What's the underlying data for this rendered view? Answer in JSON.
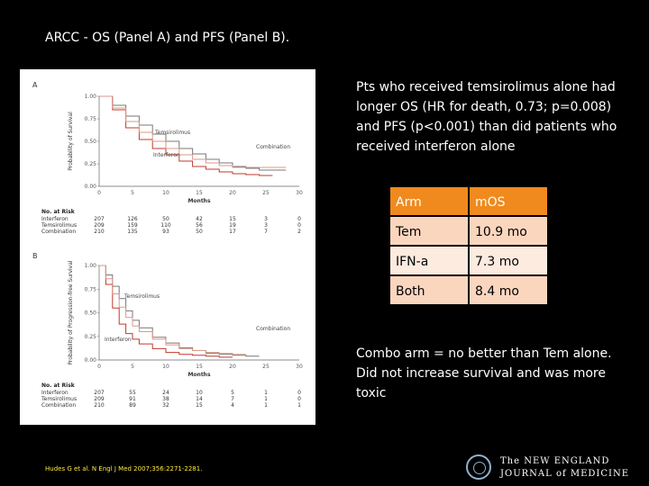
{
  "slide": {
    "title": "ARCC - OS (Panel A) and PFS (Panel B).",
    "summary": "Pts who received temsirolimus alone had longer OS (HR for death, 0.73; p=0.008) and PFS (p<0.001) than did patients who received interferon alone",
    "conclusion": "Combo arm = no better than Tem alone. Did not increase survival and was more toxic",
    "citation": "Hudes G et al. N Engl J Med 2007;356:2271-2281.",
    "logo_line1": "The NEW ENGLAND",
    "logo_line2": "JOURNAL of MEDICINE"
  },
  "table": {
    "header": [
      "Arm",
      "mOS"
    ],
    "rows": [
      [
        "Tem",
        "10.9 mo"
      ],
      [
        "IFN-a",
        "7.3 mo"
      ],
      [
        "Both",
        "8.4 mo"
      ]
    ]
  },
  "colors": {
    "interferon": "#c0392b",
    "temsirolimus": "#777777",
    "combination": "#d99a8a",
    "header": "#f08a1e"
  },
  "chart_data": [
    {
      "type": "line",
      "panel": "A",
      "title": "A",
      "ylabel": "Probability of Survival",
      "xlabel": "Months",
      "xlim": [
        0,
        30
      ],
      "ylim": [
        0,
        1
      ],
      "xticks": [
        "0",
        "5",
        "10",
        "15",
        "20",
        "25",
        "30"
      ],
      "yticks": [
        "0.00",
        "0.25",
        "0.50",
        "0.75",
        "1.00"
      ],
      "series": [
        {
          "name": "Temsirolimus",
          "color_key": "temsirolimus",
          "x": [
            0,
            2,
            4,
            6,
            8,
            10,
            12,
            14,
            16,
            18,
            20,
            22,
            24,
            26,
            28
          ],
          "y": [
            1.0,
            0.9,
            0.78,
            0.68,
            0.58,
            0.5,
            0.42,
            0.36,
            0.3,
            0.26,
            0.22,
            0.2,
            0.18,
            0.18,
            0.18
          ]
        },
        {
          "name": "Interferon",
          "color_key": "interferon",
          "x": [
            0,
            2,
            4,
            6,
            8,
            10,
            12,
            14,
            16,
            18,
            20,
            22,
            24,
            26
          ],
          "y": [
            1.0,
            0.85,
            0.65,
            0.52,
            0.42,
            0.35,
            0.28,
            0.22,
            0.19,
            0.16,
            0.14,
            0.13,
            0.12,
            0.12
          ]
        },
        {
          "name": "Combination",
          "color_key": "combination",
          "x": [
            0,
            2,
            4,
            6,
            8,
            10,
            12,
            14,
            16,
            18,
            20,
            22,
            24,
            26,
            28
          ],
          "y": [
            1.0,
            0.87,
            0.72,
            0.6,
            0.5,
            0.42,
            0.35,
            0.3,
            0.26,
            0.23,
            0.21,
            0.21,
            0.21,
            0.21,
            0.21
          ]
        }
      ],
      "labels": [
        "Temsirolimus",
        "Interferon",
        "Combination"
      ],
      "risk_title": "No. at Risk",
      "risk_table": [
        {
          "name": "Interferon",
          "values": [
            "207",
            "126",
            "50",
            "42",
            "15",
            "3",
            "0"
          ]
        },
        {
          "name": "Temsirolimus",
          "values": [
            "209",
            "159",
            "110",
            "56",
            "19",
            "3",
            "0"
          ]
        },
        {
          "name": "Combination",
          "values": [
            "210",
            "135",
            "93",
            "50",
            "17",
            "7",
            "2"
          ]
        }
      ]
    },
    {
      "type": "line",
      "panel": "B",
      "title": "B",
      "ylabel": "Probability of Progression-free Survival",
      "xlabel": "Months",
      "xlim": [
        0,
        30
      ],
      "ylim": [
        0,
        1
      ],
      "xticks": [
        "0",
        "5",
        "10",
        "15",
        "20",
        "25",
        "30"
      ],
      "yticks": [
        "0.00",
        "0.25",
        "0.50",
        "0.75",
        "1.00"
      ],
      "series": [
        {
          "name": "Temsirolimus",
          "color_key": "temsirolimus",
          "x": [
            0,
            1,
            2,
            3,
            4,
            5,
            6,
            8,
            10,
            12,
            14,
            16,
            18,
            20,
            22,
            24
          ],
          "y": [
            1.0,
            0.9,
            0.78,
            0.65,
            0.52,
            0.42,
            0.34,
            0.24,
            0.18,
            0.13,
            0.1,
            0.07,
            0.06,
            0.05,
            0.04,
            0.04
          ]
        },
        {
          "name": "Interferon",
          "color_key": "interferon",
          "x": [
            0,
            1,
            2,
            3,
            4,
            5,
            6,
            8,
            10,
            12,
            14,
            16,
            18,
            20
          ],
          "y": [
            1.0,
            0.8,
            0.55,
            0.38,
            0.28,
            0.22,
            0.17,
            0.12,
            0.08,
            0.06,
            0.05,
            0.04,
            0.03,
            0.03
          ]
        },
        {
          "name": "Combination",
          "color_key": "combination",
          "x": [
            0,
            1,
            2,
            3,
            4,
            5,
            6,
            8,
            10,
            12,
            14,
            16,
            18,
            20,
            22
          ],
          "y": [
            1.0,
            0.86,
            0.7,
            0.56,
            0.45,
            0.36,
            0.3,
            0.22,
            0.16,
            0.12,
            0.1,
            0.08,
            0.07,
            0.06,
            0.06
          ]
        }
      ],
      "labels": [
        "Temsirolimus",
        "Interferon",
        "Combination"
      ],
      "risk_title": "No. at Risk",
      "risk_table": [
        {
          "name": "Interferon",
          "values": [
            "207",
            "55",
            "24",
            "10",
            "5",
            "1",
            "0"
          ]
        },
        {
          "name": "Temsirolimus",
          "values": [
            "209",
            "91",
            "38",
            "14",
            "7",
            "1",
            "0"
          ]
        },
        {
          "name": "Combination",
          "values": [
            "210",
            "89",
            "32",
            "15",
            "4",
            "1",
            "1"
          ]
        }
      ]
    }
  ]
}
